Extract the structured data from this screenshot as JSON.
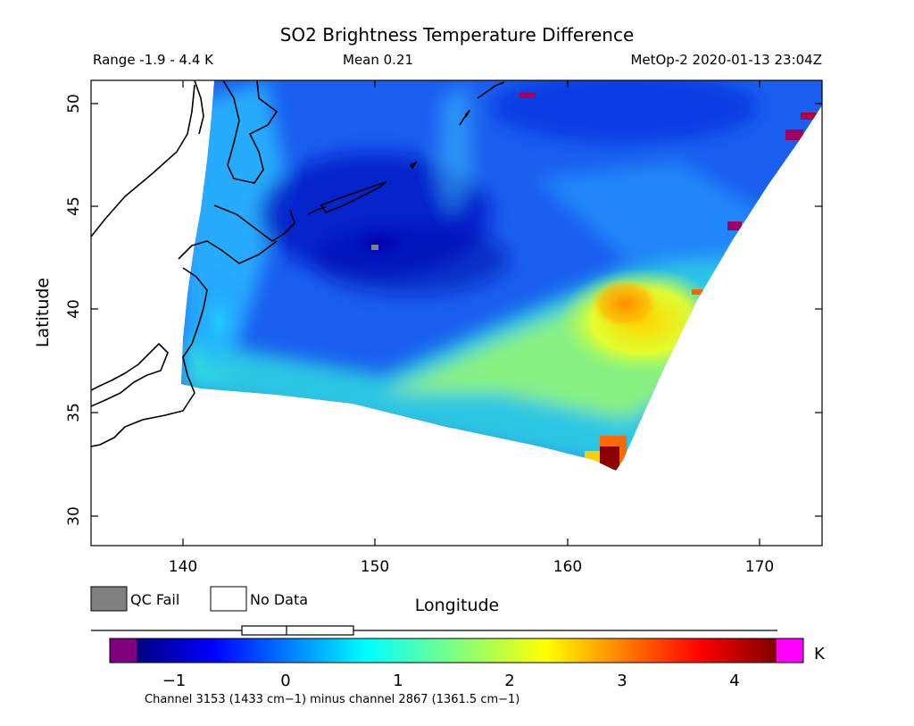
{
  "header": {
    "title": "SO2 Brightness Temperature Difference",
    "range": "Range -1.9 - 4.4 K",
    "mean": "Mean 0.21",
    "satellite_time": "MetOp-2 2020-01-13 23:04Z"
  },
  "map": {
    "xlabel": "Longitude",
    "ylabel": "Latitude",
    "lon_range": [
      135.3,
      173.2
    ],
    "lat_range": [
      28.7,
      51.2
    ],
    "x_ticks": [
      "140",
      "150",
      "160",
      "170"
    ],
    "y_ticks": [
      "30",
      "35",
      "40",
      "45",
      "50"
    ],
    "coastline_color": "#000000"
  },
  "legend": {
    "qc_fail": "QC Fail",
    "no_data": "No Data",
    "qc_fail_color": "#808080",
    "no_data_color": "#ffffff"
  },
  "colorbar": {
    "unit": "K",
    "ticks": [
      "−1",
      "0",
      "1",
      "2",
      "3",
      "4"
    ],
    "range": [
      -1.6,
      4.4
    ],
    "under_color": "#800080",
    "over_color": "#ff00ff",
    "caption": "Channel 3153 (1433 cm−1) minus channel 2867 (1361.5 cm−1)"
  }
}
